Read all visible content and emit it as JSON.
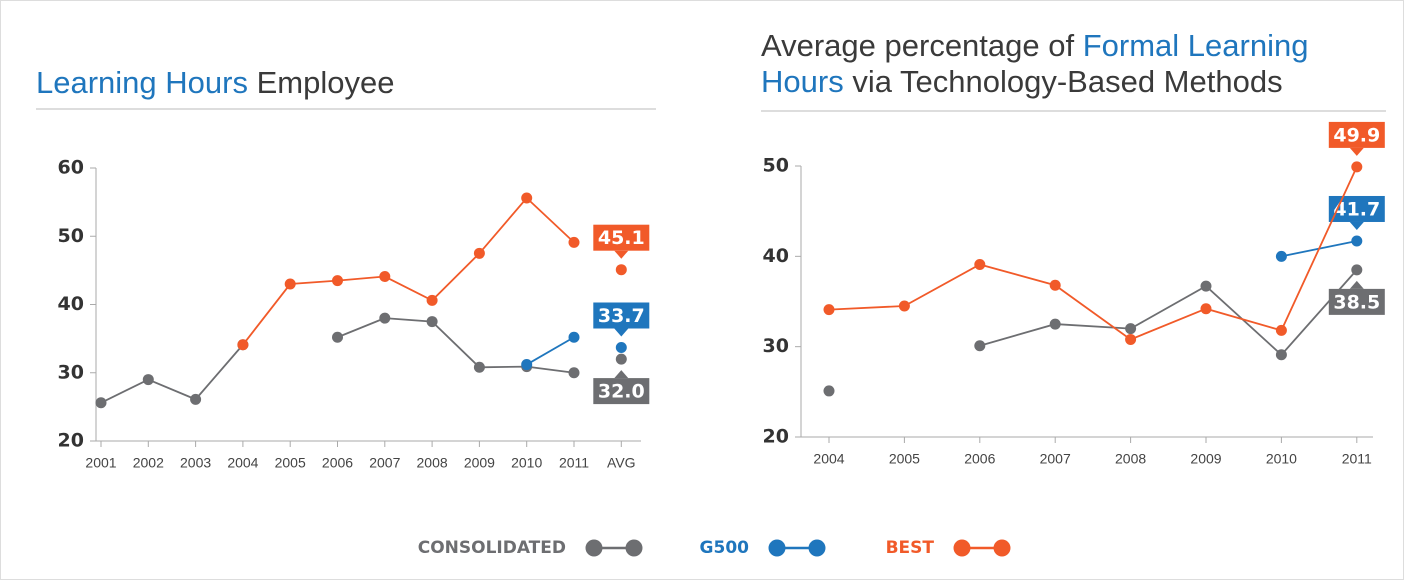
{
  "chart_data": [
    {
      "type": "line",
      "title": [
        {
          "text": "Learning Hours",
          "color": "#1f76bd"
        },
        {
          "text": "Employee",
          "color": "#3a3a3a"
        }
      ],
      "categories": [
        "2001",
        "2002",
        "2003",
        "2004",
        "2005",
        "2006",
        "2007",
        "2008",
        "2009",
        "2010",
        "2011",
        "AVG"
      ],
      "connect_last": false,
      "ylim": [
        20,
        60
      ],
      "yticks": [
        20,
        30,
        40,
        50,
        60
      ],
      "series": [
        {
          "name": "CONSOLIDATED",
          "color": "#6d6e71",
          "values": [
            25.6,
            29.0,
            26.1,
            34.1,
            null,
            35.2,
            38.0,
            37.5,
            30.8,
            30.9,
            30.0,
            32.0
          ],
          "value_labels": [
            null,
            null,
            null,
            null,
            null,
            null,
            null,
            null,
            null,
            null,
            null,
            "32.0"
          ]
        },
        {
          "name": "G500",
          "color": "#1f76bd",
          "values": [
            null,
            null,
            null,
            null,
            null,
            null,
            null,
            null,
            null,
            31.2,
            35.2,
            33.7
          ],
          "value_labels": [
            null,
            null,
            null,
            null,
            null,
            null,
            null,
            null,
            null,
            null,
            null,
            "33.7"
          ]
        },
        {
          "name": "BEST",
          "color": "#f15a29",
          "values": [
            null,
            null,
            null,
            34.1,
            43.0,
            43.5,
            44.1,
            40.6,
            47.5,
            55.6,
            49.1,
            45.1
          ],
          "value_labels": [
            null,
            null,
            null,
            null,
            null,
            null,
            null,
            null,
            null,
            null,
            null,
            "45.1"
          ]
        }
      ]
    },
    {
      "type": "line",
      "title": [
        {
          "text": "Average percentage of",
          "color": "#3a3a3a"
        },
        {
          "text": "Formal Learning Hours",
          "color": "#1f76bd"
        },
        {
          "text": "via Technology-Based Methods",
          "color": "#3a3a3a"
        }
      ],
      "categories": [
        "2004",
        "2005",
        "2006",
        "2007",
        "2008",
        "2009",
        "2010",
        "2011"
      ],
      "connect_last": true,
      "ylim": [
        20,
        50
      ],
      "yticks": [
        20,
        30,
        40,
        50
      ],
      "series": [
        {
          "name": "CONSOLIDATED",
          "color": "#6d6e71",
          "values": [
            25.1,
            null,
            30.1,
            32.5,
            32.0,
            36.7,
            29.1,
            38.5
          ],
          "value_labels": [
            null,
            null,
            null,
            null,
            null,
            null,
            null,
            "38.5"
          ]
        },
        {
          "name": "G500",
          "color": "#1f76bd",
          "values": [
            null,
            null,
            null,
            null,
            null,
            null,
            40.0,
            41.7
          ],
          "value_labels": [
            null,
            null,
            null,
            null,
            null,
            null,
            null,
            "41.7"
          ]
        },
        {
          "name": "BEST",
          "color": "#f15a29",
          "values": [
            34.1,
            34.5,
            39.1,
            36.8,
            30.8,
            34.2,
            31.8,
            49.9
          ],
          "value_labels": [
            null,
            null,
            null,
            null,
            null,
            null,
            null,
            "49.9"
          ]
        }
      ]
    }
  ]
}
